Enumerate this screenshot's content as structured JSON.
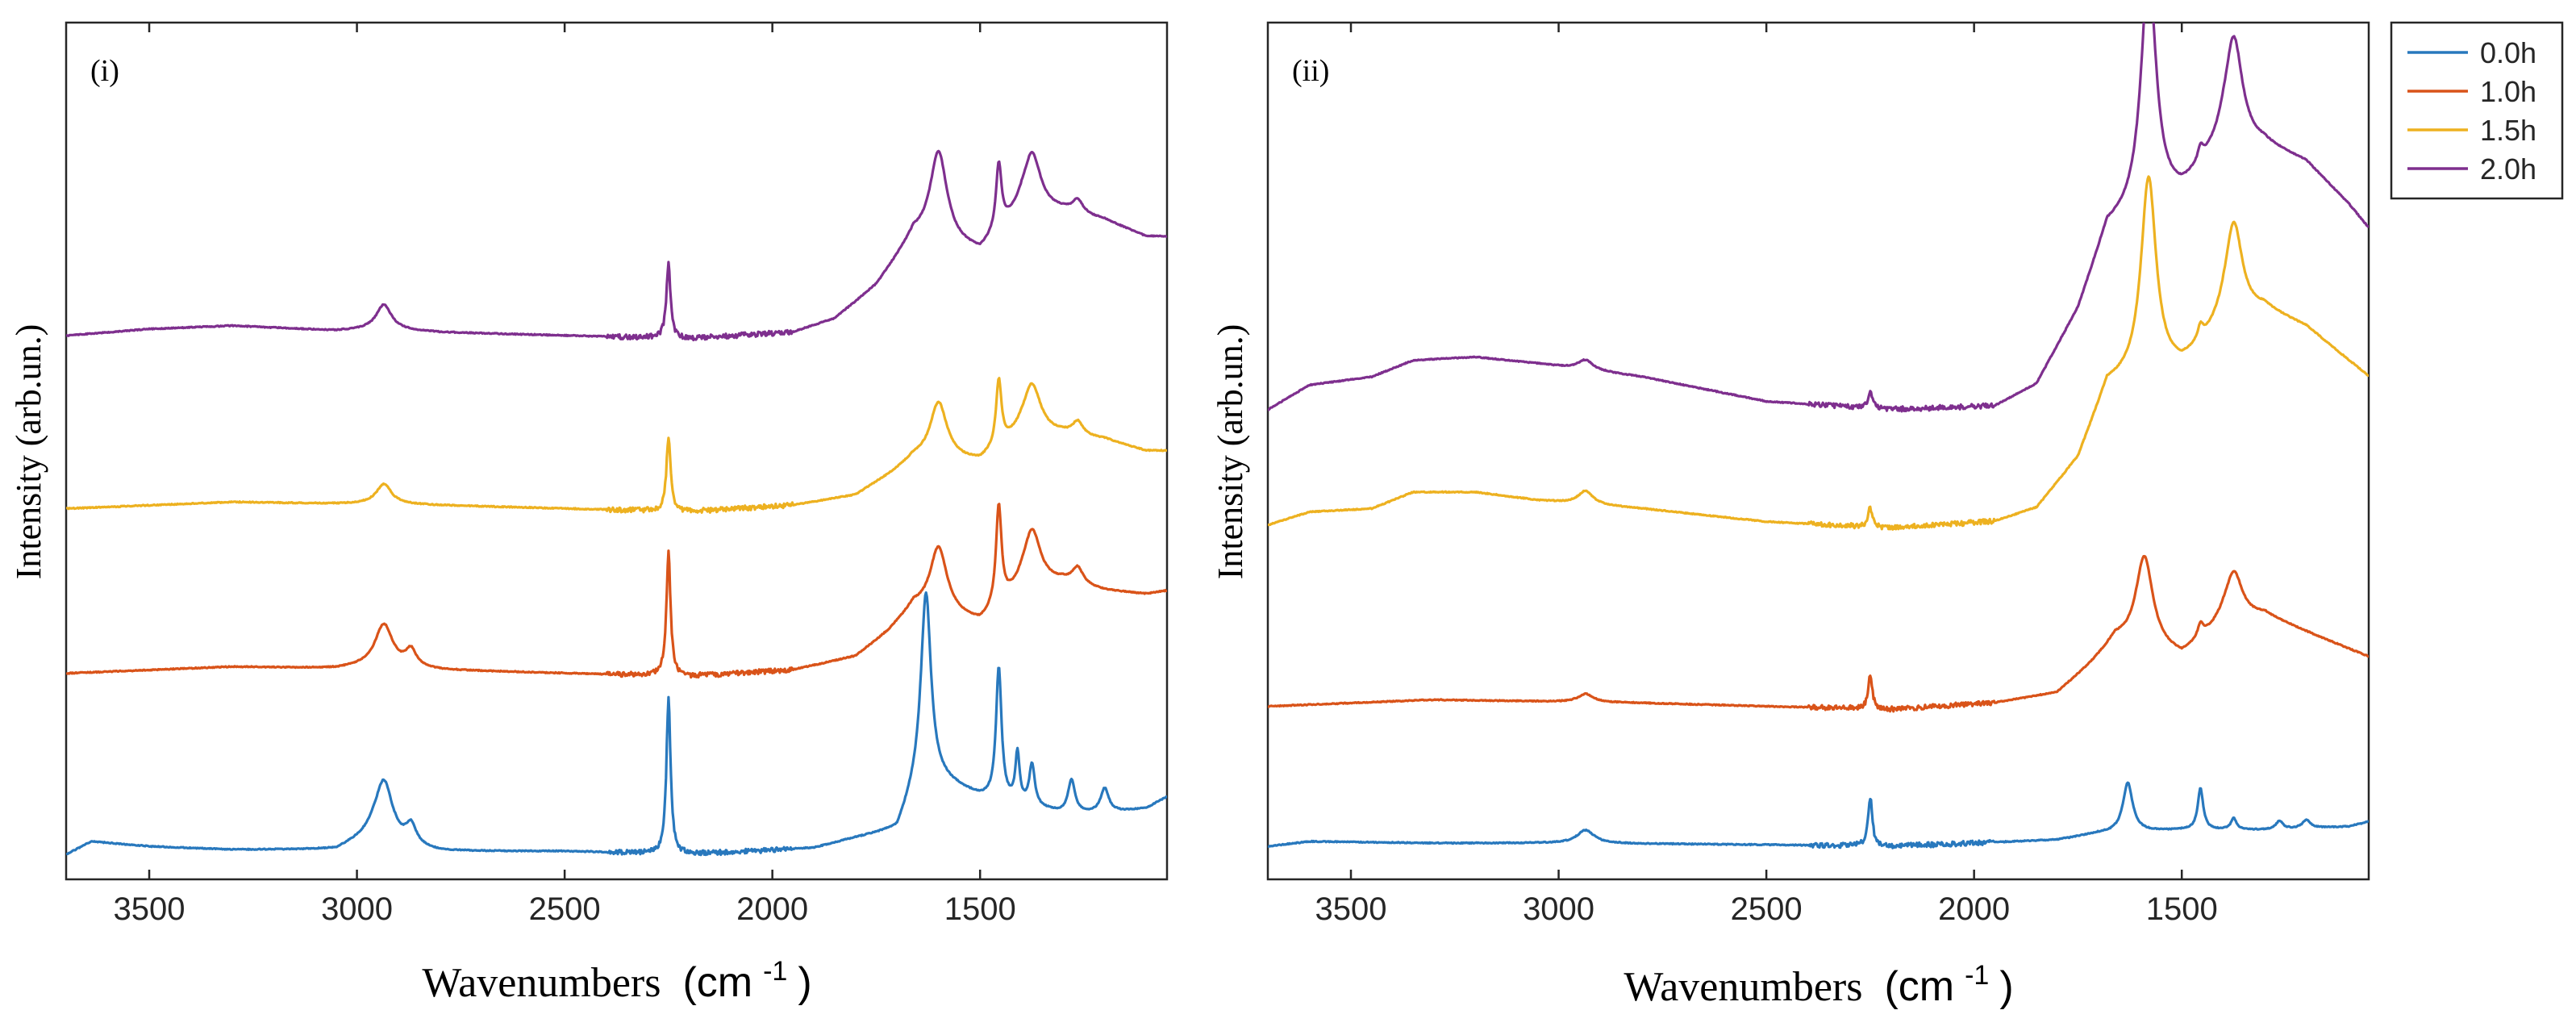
{
  "chart_data": [
    {
      "type": "line",
      "panel_label": "(i)",
      "xlabel": "Wavenumbers",
      "xlabel_unit": "(cm",
      "xlabel_unit_sup": "-1",
      "xlabel_unit_close": ")",
      "ylabel": "Intensity (arb.un.)",
      "xlim": [
        3700,
        1050
      ],
      "x_reversed": true,
      "ylim": [
        0,
        5.2
      ],
      "y_ticks_shown": false,
      "x_ticks": [
        "3500",
        "3000",
        "2500",
        "2000",
        "1500"
      ],
      "x_tick_values": [
        3500,
        3000,
        2500,
        2000,
        1500
      ],
      "grid": false,
      "series": [
        {
          "name": "0.0h",
          "color": "#2878BD",
          "offset": 0.15,
          "baseline": [
            [
              3700,
              0.0
            ],
            [
              3640,
              0.08
            ],
            [
              3500,
              0.05
            ],
            [
              3300,
              0.03
            ],
            [
              3050,
              0.03
            ],
            [
              2960,
              0.12
            ],
            [
              2880,
              0.05
            ],
            [
              2800,
              0.02
            ],
            [
              2500,
              0.02
            ],
            [
              2200,
              0.0
            ],
            [
              1900,
              0.04
            ],
            [
              1800,
              0.1
            ],
            [
              1700,
              0.15
            ],
            [
              1640,
              0.5
            ],
            [
              1500,
              0.35
            ],
            [
              1400,
              0.3
            ],
            [
              1300,
              0.25
            ],
            [
              1200,
              0.25
            ],
            [
              1100,
              0.28
            ],
            [
              1050,
              0.35
            ]
          ],
          "peaks": [
            [
              2935,
              0.35,
              25
            ],
            [
              2870,
              0.12,
              15
            ],
            [
              2250,
              0.95,
              6
            ],
            [
              1630,
              1.1,
              14
            ],
            [
              1455,
              0.8,
              8
            ],
            [
              1410,
              0.3,
              6
            ],
            [
              1375,
              0.25,
              8
            ],
            [
              1280,
              0.2,
              10
            ],
            [
              1200,
              0.15,
              12
            ]
          ]
        },
        {
          "name": "1.0h",
          "color": "#D95319",
          "offset": 1.25,
          "baseline": [
            [
              3700,
              0.0
            ],
            [
              3500,
              0.02
            ],
            [
              3300,
              0.04
            ],
            [
              3050,
              0.03
            ],
            [
              2950,
              0.05
            ],
            [
              2800,
              0.02
            ],
            [
              2500,
              0.0
            ],
            [
              2200,
              -0.02
            ],
            [
              1950,
              0.02
            ],
            [
              1800,
              0.1
            ],
            [
              1720,
              0.25
            ],
            [
              1660,
              0.4
            ],
            [
              1500,
              0.3
            ],
            [
              1400,
              0.5
            ],
            [
              1300,
              0.55
            ],
            [
              1200,
              0.5
            ],
            [
              1100,
              0.48
            ],
            [
              1050,
              0.5
            ]
          ],
          "peaks": [
            [
              2935,
              0.25,
              25
            ],
            [
              2870,
              0.1,
              15
            ],
            [
              2250,
              0.75,
              6
            ],
            [
              1600,
              0.4,
              25
            ],
            [
              1455,
              0.6,
              8
            ],
            [
              1375,
              0.35,
              25
            ],
            [
              1265,
              0.1,
              15
            ]
          ]
        },
        {
          "name": "1.5h",
          "color": "#EDB120",
          "offset": 2.25,
          "baseline": [
            [
              3700,
              0.0
            ],
            [
              3500,
              0.02
            ],
            [
              3300,
              0.04
            ],
            [
              3050,
              0.03
            ],
            [
              2950,
              0.03
            ],
            [
              2800,
              0.02
            ],
            [
              2500,
              0.0
            ],
            [
              2200,
              -0.02
            ],
            [
              1950,
              0.02
            ],
            [
              1800,
              0.08
            ],
            [
              1720,
              0.2
            ],
            [
              1660,
              0.3
            ],
            [
              1500,
              0.28
            ],
            [
              1400,
              0.45
            ],
            [
              1300,
              0.45
            ],
            [
              1200,
              0.42
            ],
            [
              1100,
              0.35
            ],
            [
              1050,
              0.35
            ]
          ],
          "peaks": [
            [
              2935,
              0.12,
              22
            ],
            [
              2250,
              0.45,
              6
            ],
            [
              1600,
              0.35,
              25
            ],
            [
              1455,
              0.4,
              8
            ],
            [
              1375,
              0.3,
              25
            ],
            [
              1265,
              0.08,
              15
            ]
          ]
        },
        {
          "name": "2.0h",
          "color": "#7E2F8E",
          "offset": 3.3,
          "baseline": [
            [
              3700,
              0.0
            ],
            [
              3500,
              0.04
            ],
            [
              3300,
              0.06
            ],
            [
              3050,
              0.03
            ],
            [
              2950,
              0.04
            ],
            [
              2800,
              0.02
            ],
            [
              2500,
              0.0
            ],
            [
              2200,
              -0.02
            ],
            [
              1950,
              0.02
            ],
            [
              1850,
              0.1
            ],
            [
              1750,
              0.3
            ],
            [
              1660,
              0.6
            ],
            [
              1500,
              0.5
            ],
            [
              1400,
              0.75
            ],
            [
              1300,
              0.75
            ],
            [
              1200,
              0.7
            ],
            [
              1100,
              0.6
            ],
            [
              1050,
              0.6
            ]
          ],
          "peaks": [
            [
              2935,
              0.15,
              22
            ],
            [
              2250,
              0.45,
              6
            ],
            [
              1600,
              0.55,
              25
            ],
            [
              1455,
              0.4,
              8
            ],
            [
              1375,
              0.35,
              25
            ],
            [
              1265,
              0.08,
              15
            ]
          ]
        }
      ]
    },
    {
      "type": "line",
      "panel_label": "(ii)",
      "xlabel": "Wavenumbers",
      "xlabel_unit": "(cm",
      "xlabel_unit_sup": "-1",
      "xlabel_unit_close": ")",
      "ylabel": "Intensity (arb.un.)",
      "xlim": [
        3700,
        1050
      ],
      "x_reversed": true,
      "ylim": [
        0,
        5.2
      ],
      "y_ticks_shown": false,
      "x_ticks": [
        "3500",
        "3000",
        "2500",
        "2000",
        "1500"
      ],
      "x_tick_values": [
        3500,
        3000,
        2500,
        2000,
        1500
      ],
      "grid": false,
      "legend_position": "outside-top-right",
      "series": [
        {
          "name": "0.0h",
          "color": "#2878BD",
          "offset": 0.2,
          "baseline": [
            [
              3700,
              0.0
            ],
            [
              3600,
              0.03
            ],
            [
              3300,
              0.02
            ],
            [
              3000,
              0.02
            ],
            [
              2500,
              0.01
            ],
            [
              2200,
              0.0
            ],
            [
              1800,
              0.04
            ],
            [
              1700,
              0.08
            ],
            [
              1500,
              0.1
            ],
            [
              1300,
              0.1
            ],
            [
              1100,
              0.12
            ],
            [
              1050,
              0.15
            ]
          ],
          "peaks": [
            [
              2935,
              0.08,
              25
            ],
            [
              2250,
              0.3,
              6
            ],
            [
              1630,
              0.3,
              14
            ],
            [
              1455,
              0.25,
              8
            ],
            [
              1375,
              0.07,
              8
            ],
            [
              1265,
              0.05,
              10
            ],
            [
              1200,
              0.05,
              12
            ]
          ]
        },
        {
          "name": "1.0h",
          "color": "#D95319",
          "offset": 1.05,
          "baseline": [
            [
              3700,
              0.0
            ],
            [
              3500,
              0.02
            ],
            [
              3300,
              0.04
            ],
            [
              3050,
              0.03
            ],
            [
              2800,
              0.02
            ],
            [
              2500,
              0.0
            ],
            [
              2200,
              -0.02
            ],
            [
              1950,
              0.02
            ],
            [
              1800,
              0.08
            ],
            [
              1720,
              0.25
            ],
            [
              1660,
              0.4
            ],
            [
              1500,
              0.3
            ],
            [
              1400,
              0.5
            ],
            [
              1300,
              0.55
            ],
            [
              1200,
              0.45
            ],
            [
              1100,
              0.35
            ],
            [
              1050,
              0.3
            ]
          ],
          "peaks": [
            [
              2935,
              0.05,
              22
            ],
            [
              2250,
              0.2,
              6
            ],
            [
              1590,
              0.55,
              25
            ],
            [
              1455,
              0.08,
              8
            ],
            [
              1375,
              0.3,
              25
            ]
          ]
        },
        {
          "name": "1.5h",
          "color": "#EDB120",
          "offset": 2.15,
          "baseline": [
            [
              3700,
              0.0
            ],
            [
              3600,
              0.08
            ],
            [
              3450,
              0.1
            ],
            [
              3350,
              0.2
            ],
            [
              3200,
              0.2
            ],
            [
              3050,
              0.15
            ],
            [
              2800,
              0.1
            ],
            [
              2500,
              0.02
            ],
            [
              2200,
              -0.02
            ],
            [
              1950,
              0.02
            ],
            [
              1850,
              0.1
            ],
            [
              1750,
              0.4
            ],
            [
              1680,
              0.85
            ],
            [
              1500,
              0.95
            ],
            [
              1400,
              1.2
            ],
            [
              1300,
              1.3
            ],
            [
              1200,
              1.2
            ],
            [
              1100,
              1.0
            ],
            [
              1050,
              0.9
            ]
          ],
          "peaks": [
            [
              2935,
              0.08,
              22
            ],
            [
              2250,
              0.12,
              6
            ],
            [
              1580,
              1.2,
              22
            ],
            [
              1455,
              0.08,
              8
            ],
            [
              1375,
              0.6,
              25
            ]
          ]
        },
        {
          "name": "2.0h",
          "color": "#7E2F8E",
          "offset": 2.85,
          "baseline": [
            [
              3700,
              0.0
            ],
            [
              3600,
              0.15
            ],
            [
              3450,
              0.2
            ],
            [
              3350,
              0.3
            ],
            [
              3200,
              0.32
            ],
            [
              3050,
              0.28
            ],
            [
              2800,
              0.2
            ],
            [
              2500,
              0.05
            ],
            [
              2200,
              0.0
            ],
            [
              1950,
              0.02
            ],
            [
              1850,
              0.15
            ],
            [
              1750,
              0.6
            ],
            [
              1680,
              1.1
            ],
            [
              1500,
              1.3
            ],
            [
              1400,
              1.6
            ],
            [
              1300,
              1.6
            ],
            [
              1200,
              1.5
            ],
            [
              1100,
              1.25
            ],
            [
              1050,
              1.1
            ]
          ],
          "peaks": [
            [
              2935,
              0.06,
              22
            ],
            [
              2250,
              0.1,
              6
            ],
            [
              1580,
              1.45,
              22
            ],
            [
              1455,
              0.08,
              8
            ],
            [
              1375,
              0.65,
              25
            ]
          ]
        }
      ]
    }
  ],
  "legend": {
    "entries": [
      "0.0h",
      "1.0h",
      "1.5h",
      "2.0h"
    ],
    "colors": [
      "#2878BD",
      "#D95319",
      "#EDB120",
      "#7E2F8E"
    ]
  }
}
